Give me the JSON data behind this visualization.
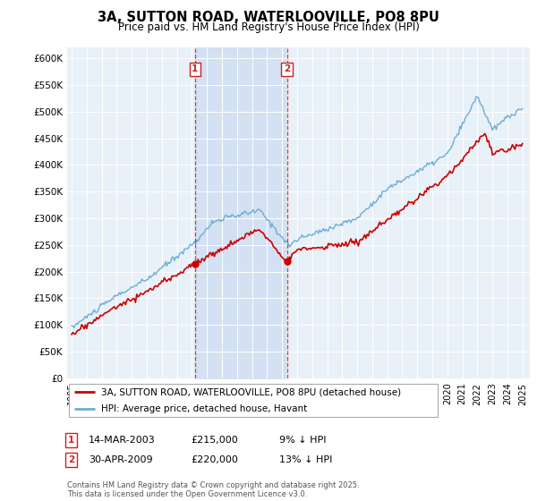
{
  "title": "3A, SUTTON ROAD, WATERLOOVILLE, PO8 8PU",
  "subtitle": "Price paid vs. HM Land Registry's House Price Index (HPI)",
  "legend_line1": "3A, SUTTON ROAD, WATERLOOVILLE, PO8 8PU (detached house)",
  "legend_line2": "HPI: Average price, detached house, Havant",
  "annotation1_date": "14-MAR-2003",
  "annotation1_price": "£215,000",
  "annotation1_hpi": "9% ↓ HPI",
  "annotation1_year": 2003.2,
  "annotation1_value": 215000,
  "annotation2_date": "30-APR-2009",
  "annotation2_price": "£220,000",
  "annotation2_hpi": "13% ↓ HPI",
  "annotation2_year": 2009.33,
  "annotation2_value": 220000,
  "footer": "Contains HM Land Registry data © Crown copyright and database right 2025.\nThis data is licensed under the Open Government Licence v3.0.",
  "hpi_color": "#6baed6",
  "price_color": "#cc0000",
  "vline_color": "#cc2222",
  "shade_color": "#ddeeff",
  "background_color": "#e8f0f8",
  "ylim_min": 0,
  "ylim_max": 620000,
  "ytick_step": 50000,
  "xmin": 1995,
  "xmax": 2025
}
